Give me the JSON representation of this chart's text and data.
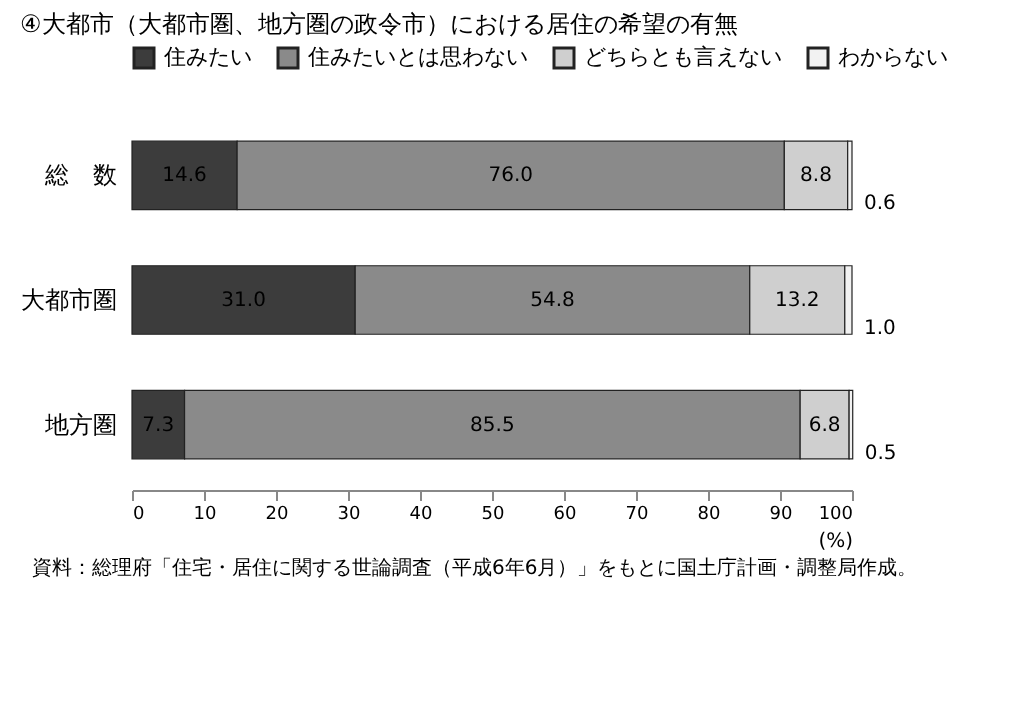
{
  "chart_data": {
    "type": "bar",
    "orientation": "horizontal",
    "stacked": true,
    "title": "④大都市（大都市圏、地方圏の政令市）における居住の希望の有無",
    "categories": [
      "総　数",
      "大都市圏",
      "地方圏"
    ],
    "series": [
      {
        "name": "住みたい",
        "color": "#3c3c3c",
        "values": [
          14.6,
          31.0,
          7.3
        ],
        "value_labels": [
          "14.6",
          "31.0",
          "7.3"
        ]
      },
      {
        "name": "住みたいとは思わない",
        "color": "#8a8a8a",
        "values": [
          76.0,
          54.8,
          85.5
        ],
        "value_labels": [
          "76.0",
          "54.8",
          "85.5"
        ]
      },
      {
        "name": "どちらとも言えない",
        "color": "#cfcfcf",
        "values": [
          8.8,
          13.2,
          6.8
        ],
        "value_labels": [
          "8.8",
          "13.2",
          "6.8"
        ]
      },
      {
        "name": "わからない",
        "color": "#f2f2f2",
        "values": [
          0.6,
          1.0,
          0.5
        ],
        "value_labels": [
          "0.6",
          "1.0",
          "0.5"
        ]
      }
    ],
    "xlim": [
      0,
      100
    ],
    "xticks": [
      0,
      10,
      20,
      30,
      40,
      50,
      60,
      70,
      80,
      90,
      100
    ],
    "xlabel": "(%)",
    "legend": "top",
    "grid": false,
    "annotations": [
      "資料：総理府「住宅・居住に関する世論調査（平成6年6月）」をもとに国土庁計画・調整局作成。"
    ]
  }
}
